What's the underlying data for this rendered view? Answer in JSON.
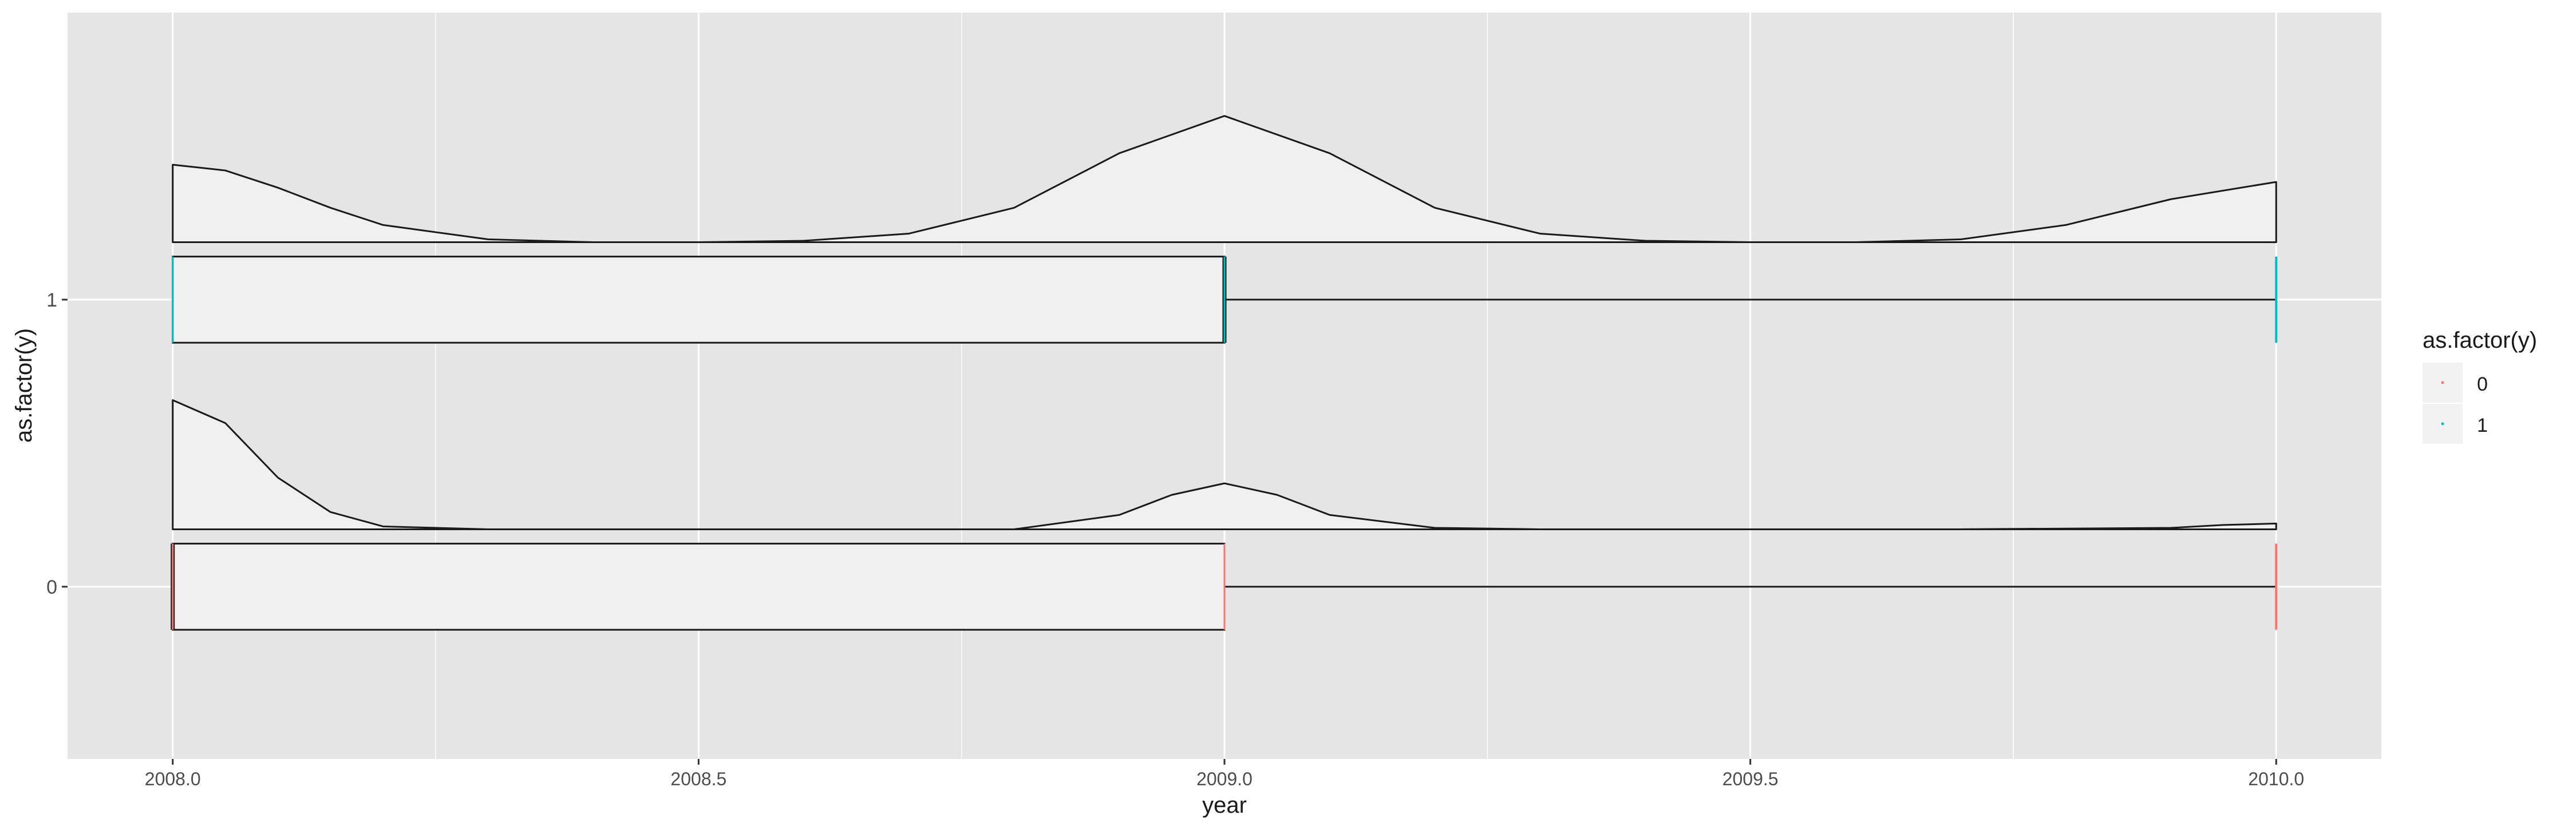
{
  "chart_data": {
    "type": "boxplot+density",
    "xlabel": "year",
    "ylabel": "as.factor(y)",
    "xlim": [
      2007.9,
      2010.1
    ],
    "ylim": [
      -0.6,
      2.0
    ],
    "x_ticks": [
      {
        "value": 2008.0,
        "label": "2008.0"
      },
      {
        "value": 2008.5,
        "label": "2008.5"
      },
      {
        "value": 2009.0,
        "label": "2009.0"
      },
      {
        "value": 2009.5,
        "label": "2009.5"
      },
      {
        "value": 2010.0,
        "label": "2010.0"
      }
    ],
    "x_minor_ticks": [
      2008.25,
      2008.75,
      2009.25,
      2009.75
    ],
    "categories": [
      "0",
      "1"
    ],
    "grid": true,
    "legend": {
      "title": "as.factor(y)",
      "position": "right",
      "entries": [
        {
          "label": "0",
          "color": "#F8766D"
        },
        {
          "label": "1",
          "color": "#00BFC4"
        }
      ]
    },
    "colors": {
      "panel_bg": "#E5E5E5",
      "grid": "#FFFFFF",
      "fill": "#F0F0F0",
      "outline": "#1A1A1A",
      "axis_text": "#4D4D4D",
      "title_text": "#1A1A1A"
    },
    "groups": [
      {
        "name": "0",
        "color": "#F8766D",
        "boxplot": {
          "min": 2008.0,
          "q1": 2008.0,
          "median": 2008.0,
          "q3": 2009.0,
          "max": 2010.0
        },
        "density": {
          "x": [
            2008.0,
            2008.05,
            2008.1,
            2008.15,
            2008.2,
            2008.3,
            2008.5,
            2008.7,
            2008.8,
            2008.9,
            2008.95,
            2009.0,
            2009.05,
            2009.1,
            2009.2,
            2009.3,
            2009.5,
            2009.7,
            2009.9,
            2009.95,
            2010.0
          ],
          "y": [
            0.45,
            0.37,
            0.18,
            0.06,
            0.01,
            0.0,
            0.0,
            0.0,
            0.0,
            0.05,
            0.12,
            0.16,
            0.12,
            0.05,
            0.005,
            0.0,
            0.0,
            0.0,
            0.005,
            0.015,
            0.02
          ]
        }
      },
      {
        "name": "1",
        "color": "#00BFC4",
        "boxplot": {
          "min": 2008.0,
          "q1": 2008.0,
          "median": 2009.0,
          "q3": 2009.0,
          "max": 2010.0
        },
        "density": {
          "x": [
            2008.0,
            2008.05,
            2008.1,
            2008.15,
            2008.2,
            2008.3,
            2008.4,
            2008.5,
            2008.6,
            2008.7,
            2008.8,
            2008.9,
            2009.0,
            2009.1,
            2009.2,
            2009.3,
            2009.4,
            2009.5,
            2009.6,
            2009.7,
            2009.8,
            2009.9,
            2010.0
          ],
          "y": [
            0.27,
            0.25,
            0.19,
            0.12,
            0.06,
            0.01,
            0.0,
            0.0,
            0.005,
            0.03,
            0.12,
            0.31,
            0.44,
            0.31,
            0.12,
            0.03,
            0.005,
            0.0,
            0.0,
            0.01,
            0.06,
            0.15,
            0.21
          ]
        }
      }
    ]
  }
}
